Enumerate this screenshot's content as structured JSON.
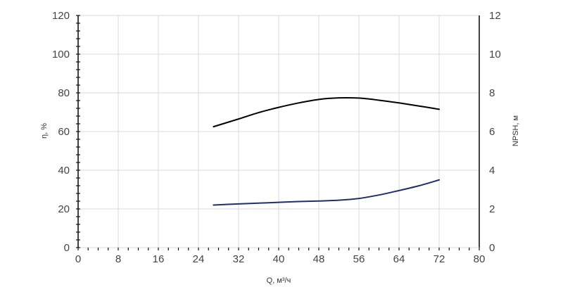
{
  "chart_data": {
    "type": "line",
    "title": "",
    "xlabel": "Q, м³/ч",
    "ylabel_left": "η, %",
    "ylabel_right": "NPSH, м",
    "xlim": [
      0,
      80
    ],
    "ylim_left": [
      0,
      120
    ],
    "ylim_right": [
      0,
      12
    ],
    "x_ticks": [
      "0",
      "8",
      "16",
      "24",
      "32",
      "40",
      "48",
      "56",
      "64",
      "72",
      "80"
    ],
    "y_left_ticks": [
      "0",
      "20",
      "40",
      "60",
      "80",
      "100",
      "120"
    ],
    "y_right_ticks": [
      "0",
      "2",
      "4",
      "6",
      "8",
      "10",
      "12"
    ],
    "grid": true,
    "series": [
      {
        "axis": "left",
        "color": "#000000",
        "x": [
          27,
          32,
          36,
          40,
          44,
          48,
          52,
          56,
          60,
          64,
          68,
          72
        ],
        "y": [
          62.5,
          66.5,
          69.8,
          72.5,
          74.8,
          76.6,
          77.4,
          77.3,
          76.2,
          74.8,
          73.2,
          71.5
        ]
      },
      {
        "axis": "right",
        "color": "#1f2f6e",
        "x": [
          27,
          32,
          36,
          40,
          44,
          48,
          52,
          56,
          60,
          64,
          68,
          72
        ],
        "y": [
          2.2,
          2.26,
          2.3,
          2.34,
          2.38,
          2.41,
          2.45,
          2.54,
          2.72,
          2.95,
          3.2,
          3.5
        ]
      }
    ]
  }
}
